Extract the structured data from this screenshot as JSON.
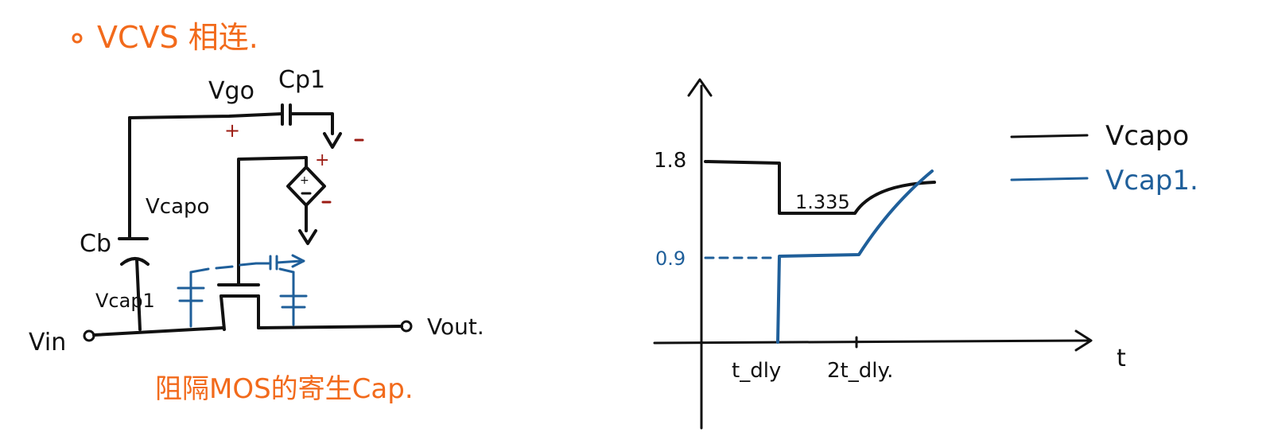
{
  "colors": {
    "ink": "#111111",
    "orange": "#f26a1b",
    "blue": "#1f5f9a",
    "polarity_red": "#9c1c14"
  },
  "circuit": {
    "heading": "VCVS 相连.",
    "node_vgo": "Vgo",
    "cap_cp1": "Cp1",
    "node_vcapo": "Vcapo",
    "cap_cb": "Cb",
    "node_vcap1": "Vcap1",
    "port_vin": "Vin",
    "port_vout": "Vout.",
    "plus_sign": "+",
    "minus_sign": "-",
    "caption": "阻隔MOS的寄生Cap."
  },
  "timing": {
    "y_tick_18": "1.8",
    "y_tick_09": "0.9",
    "level_label": "1.335",
    "x_tick_1": "t_dly",
    "x_tick_2": "2t_dly.",
    "x_axis": "t",
    "legend": [
      {
        "label": "Vcapo",
        "color": "#111111"
      },
      {
        "label": "Vcap1.",
        "color": "#1f5f9a"
      }
    ]
  }
}
